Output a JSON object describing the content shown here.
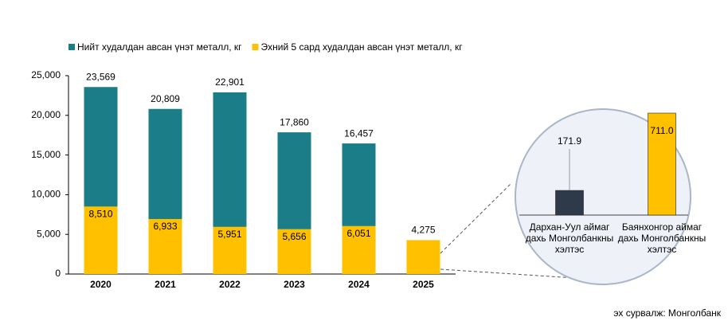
{
  "chart_data": [
    {
      "type": "bar",
      "categories": [
        "2020",
        "2021",
        "2022",
        "2023",
        "2024",
        "2025"
      ],
      "series": [
        {
          "name": "Нийт худалдан авсан үнэт металл, кг",
          "color": "#1a7d87",
          "values": [
            23569,
            20809,
            22901,
            17860,
            16457,
            null
          ],
          "value_labels": [
            "23,569",
            "20,809",
            "22,901",
            "17,860",
            "16,457",
            null
          ]
        },
        {
          "name": "Эхний 5 сард худалдан авсан үнэт металл, кг",
          "color": "#ffc000",
          "values": [
            8510,
            6933,
            5951,
            5656,
            6051,
            4275
          ],
          "value_labels": [
            "8,510",
            "6,933",
            "5,951",
            "5,656",
            "6,051",
            "4,275"
          ]
        }
      ],
      "ylim": [
        0,
        25000
      ],
      "yticks": [
        0,
        {
          "value": 5000,
          "label": "5,000"
        },
        {
          "value": 10000,
          "label": "10,000"
        },
        {
          "value": 15000,
          "label": "15,000"
        },
        {
          "value": 20000,
          "label": "20,000"
        },
        {
          "value": 25000,
          "label": "25,000"
        }
      ],
      "legend": "top"
    },
    {
      "type": "bar",
      "categories": [
        "Дархан-Уул аймаг дахь Монголбанкны хэлтэс",
        "Баянхонгор аймаг дахь Монголбанкны хэлтэс"
      ],
      "values": [
        171.9,
        711.0
      ],
      "value_labels": [
        "171.9",
        "711.0"
      ],
      "colors": [
        "#2e3a4a",
        "#ffc000"
      ]
    }
  ],
  "source": "эх сурвалж: Монголбанк"
}
